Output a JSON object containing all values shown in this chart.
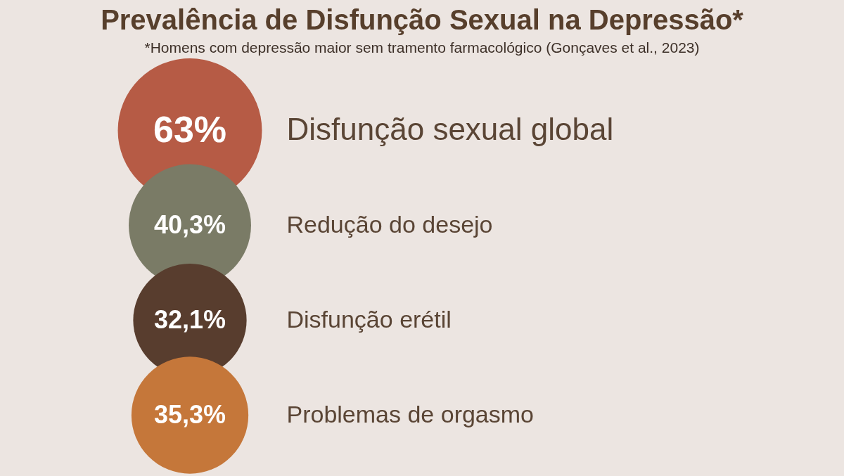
{
  "chart_data": {
    "type": "other",
    "title": "Prevalência de Disfunção Sexual na Depressão*",
    "subtitle": "*Homens com depressão maior sem tramento farmacológico (Gonçaves et al., 2023)",
    "categories": [
      "Disfunção sexual global",
      "Redução do desejo",
      "Disfunção erétil",
      "Problemas de orgasmo"
    ],
    "values": [
      63,
      40.3,
      32.1,
      35.3
    ],
    "value_labels": [
      "63%",
      "40,3%",
      "32,1%",
      "35,3%"
    ],
    "colors": [
      "#b65b45",
      "#7a7b66",
      "#583d2e",
      "#c5773a"
    ]
  }
}
